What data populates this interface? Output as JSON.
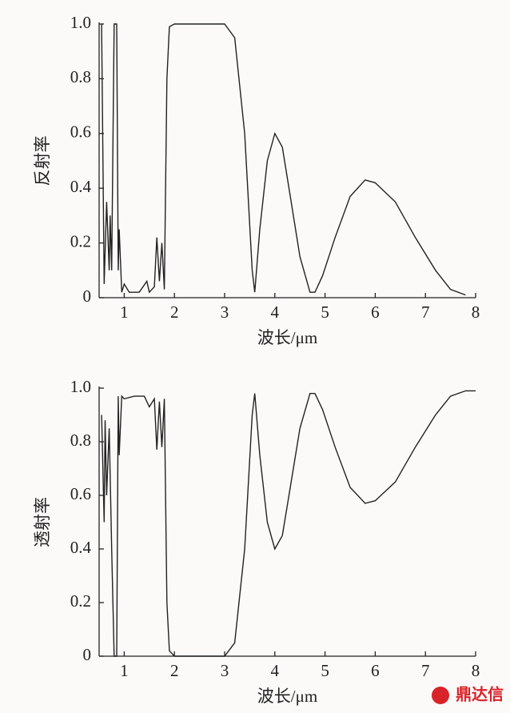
{
  "chart_data": [
    {
      "type": "line",
      "y_label": "反射率",
      "x_label": "波长/μm",
      "color": "#222222",
      "grid": false,
      "x": [
        0.55,
        0.6,
        0.65,
        0.7,
        0.72,
        0.75,
        0.8,
        0.85,
        0.88,
        0.9,
        0.95,
        1.0,
        1.1,
        1.3,
        1.45,
        1.5,
        1.6,
        1.65,
        1.7,
        1.75,
        1.8,
        1.85,
        1.9,
        2.0,
        2.5,
        3.0,
        3.2,
        3.4,
        3.55,
        3.6,
        3.7,
        3.85,
        4.0,
        4.15,
        4.3,
        4.5,
        4.7,
        4.8,
        4.95,
        5.2,
        5.5,
        5.8,
        6.0,
        6.4,
        6.8,
        7.2,
        7.5,
        7.8
      ],
      "values": [
        1.0,
        0.05,
        0.35,
        0.1,
        0.3,
        0.1,
        1.0,
        1.0,
        0.1,
        0.25,
        0.02,
        0.05,
        0.02,
        0.02,
        0.06,
        0.02,
        0.04,
        0.22,
        0.06,
        0.2,
        0.03,
        0.8,
        0.99,
        1.0,
        1.0,
        1.0,
        0.95,
        0.6,
        0.1,
        0.02,
        0.25,
        0.5,
        0.6,
        0.55,
        0.38,
        0.15,
        0.02,
        0.02,
        0.08,
        0.22,
        0.37,
        0.43,
        0.42,
        0.35,
        0.22,
        0.1,
        0.03,
        0.01
      ],
      "xlim": [
        0.5,
        8
      ],
      "xticks": [
        1,
        2,
        3,
        4,
        5,
        6,
        7,
        8
      ],
      "ylim": [
        0,
        1
      ],
      "yticks": [
        0,
        0.2,
        0.4,
        0.6,
        0.8,
        {
          "value": 1,
          "label": "1.0"
        }
      ]
    },
    {
      "type": "line",
      "y_label": "透射率",
      "x_label": "波长/μm",
      "color": "#222222",
      "grid": false,
      "x": [
        0.55,
        0.6,
        0.62,
        0.65,
        0.7,
        0.75,
        0.8,
        0.85,
        0.88,
        0.9,
        0.95,
        1.0,
        1.2,
        1.4,
        1.5,
        1.6,
        1.65,
        1.7,
        1.75,
        1.8,
        1.85,
        1.9,
        2.0,
        2.5,
        3.0,
        3.2,
        3.4,
        3.55,
        3.6,
        3.7,
        3.85,
        4.0,
        4.15,
        4.3,
        4.5,
        4.7,
        4.8,
        4.95,
        5.2,
        5.5,
        5.8,
        6.0,
        6.4,
        6.8,
        7.2,
        7.5,
        7.8,
        8.0
      ],
      "values": [
        0.9,
        0.5,
        0.88,
        0.6,
        0.85,
        0.4,
        0.0,
        0.0,
        0.97,
        0.75,
        0.97,
        0.96,
        0.97,
        0.97,
        0.93,
        0.96,
        0.77,
        0.95,
        0.78,
        0.96,
        0.2,
        0.02,
        0.0,
        0.0,
        0.0,
        0.05,
        0.4,
        0.9,
        0.98,
        0.75,
        0.5,
        0.4,
        0.45,
        0.62,
        0.85,
        0.98,
        0.98,
        0.92,
        0.78,
        0.63,
        0.57,
        0.58,
        0.65,
        0.78,
        0.9,
        0.97,
        0.99,
        0.99
      ],
      "xlim": [
        0.5,
        8
      ],
      "xticks": [
        1,
        2,
        3,
        4,
        5,
        6,
        7,
        8
      ],
      "ylim": [
        0,
        1
      ],
      "yticks": [
        0,
        0.2,
        0.4,
        0.6,
        0.8,
        {
          "value": 1,
          "label": "1.0"
        }
      ]
    }
  ],
  "watermark": "鼎达信"
}
